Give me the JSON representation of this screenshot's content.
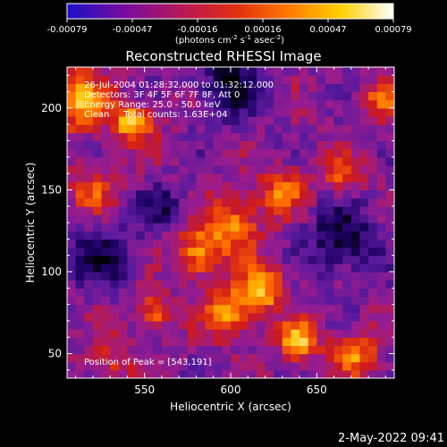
{
  "chart_data": {
    "type": "heatmap",
    "title": "Reconstructed RHESSI Image",
    "xlabel": "Heliocentric X (arcsec)",
    "ylabel": "Heliocentric Y (arcsec)",
    "xlim": [
      505,
      695
    ],
    "ylim": [
      35,
      225
    ],
    "x_ticks": [
      550,
      600,
      650
    ],
    "y_ticks": [
      50,
      100,
      150,
      200
    ],
    "colorbar": {
      "ticks": [
        "-0.00079",
        "-0.00047",
        "-0.00016",
        "0.00016",
        "0.00047",
        "0.00079"
      ],
      "vmin": -0.00079,
      "vmax": 0.00079,
      "unit_label_parts": [
        "(photons cm",
        "-2",
        " s",
        "-1",
        " asec",
        "-2",
        ")"
      ]
    },
    "annotations": [
      "26-Jul-2004 01:28:32.000 to 01:32:12.000",
      "Detectors: 3F 4F 5F 6F 7F 8F, Att 0",
      "Energy Range: 25.0 - 50.0 keV",
      "Clean     Total counts: 1.63E+04"
    ],
    "peak_label": "Position of Peak = [543,191]",
    "peak_position": [
      543,
      191
    ],
    "footer_date": "2-May-2022 09:41",
    "colormap": [
      "#000000",
      "#1a0060",
      "#5a1a9e",
      "#9a1c8e",
      "#d01a1a",
      "#ff6a00",
      "#ffc400",
      "#ffffff"
    ],
    "grid": {
      "cols": 38,
      "rows": 38,
      "hotspots": [
        {
          "x": 512,
          "y": 205,
          "amp": 0.00075,
          "sigma": 12
        },
        {
          "x": 543,
          "y": 191,
          "amp": 0.00079,
          "sigma": 8
        },
        {
          "x": 600,
          "y": 128,
          "amp": 0.0006,
          "sigma": 12
        },
        {
          "x": 580,
          "y": 110,
          "amp": 0.00055,
          "sigma": 10
        },
        {
          "x": 618,
          "y": 90,
          "amp": 0.0007,
          "sigma": 10
        },
        {
          "x": 598,
          "y": 75,
          "amp": 0.00068,
          "sigma": 10
        },
        {
          "x": 640,
          "y": 58,
          "amp": 0.00072,
          "sigma": 8
        },
        {
          "x": 672,
          "y": 50,
          "amp": 0.0006,
          "sigma": 9
        },
        {
          "x": 555,
          "y": 75,
          "amp": 0.0005,
          "sigma": 8
        },
        {
          "x": 630,
          "y": 150,
          "amp": 0.0005,
          "sigma": 10
        },
        {
          "x": 665,
          "y": 160,
          "amp": 0.00045,
          "sigma": 9
        },
        {
          "x": 690,
          "y": 205,
          "amp": 0.0005,
          "sigma": 8
        },
        {
          "x": 520,
          "y": 150,
          "amp": 0.0004,
          "sigma": 10
        },
        {
          "x": 530,
          "y": 45,
          "amp": 0.0003,
          "sigma": 10
        }
      ],
      "cold_spots": [
        {
          "x": 600,
          "y": 215,
          "amp": -0.0005,
          "sigma": 14
        },
        {
          "x": 665,
          "y": 120,
          "amp": -0.00045,
          "sigma": 16
        },
        {
          "x": 525,
          "y": 110,
          "amp": -0.0004,
          "sigma": 14
        },
        {
          "x": 560,
          "y": 140,
          "amp": -0.00035,
          "sigma": 10
        }
      ]
    }
  }
}
